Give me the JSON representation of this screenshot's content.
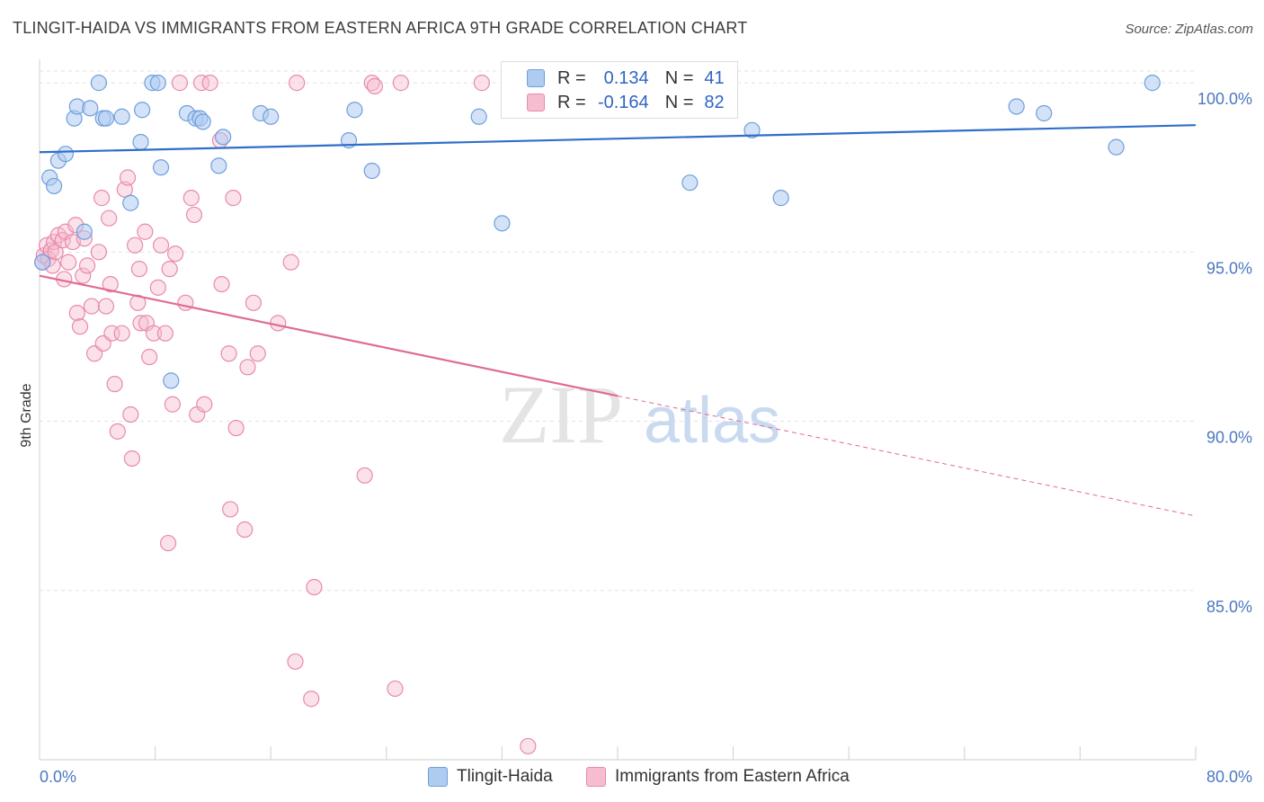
{
  "title": "TLINGIT-HAIDA VS IMMIGRANTS FROM EASTERN AFRICA 9TH GRADE CORRELATION CHART",
  "source": "Source: ZipAtlas.com",
  "watermark_zip": "ZIP",
  "watermark_atlas": "atlas",
  "stats": [
    {
      "r_label": "R =",
      "r_value": "0.134",
      "n_label": "N =",
      "n_value": "41"
    },
    {
      "r_label": "R =",
      "r_value": "-0.164",
      "n_label": "N =",
      "n_value": "82"
    }
  ],
  "legend": [
    "Tlingit-Haida",
    "Immigrants from Eastern Africa"
  ],
  "colors": {
    "blue_fill": "#aecbf0",
    "blue_stroke": "#6e9fdc",
    "blue_line": "#2f6fc9",
    "pink_fill": "#f6bdd0",
    "pink_stroke": "#e88aaa",
    "pink_line": "#e06b94",
    "grid": "#e2e2e2",
    "axis_text": "#4a78c2"
  },
  "chart_data": {
    "type": "scatter",
    "title": "TLINGIT-HAIDA VS IMMIGRANTS FROM EASTERN AFRICA 9TH GRADE CORRELATION CHART",
    "xlabel": "",
    "ylabel": "9th Grade",
    "xlim": [
      0,
      80
    ],
    "ylim": [
      80,
      100.8
    ],
    "x_ticks": [
      "0.0%",
      "80.0%"
    ],
    "y_ticks": [
      {
        "value": 100,
        "label": "100.0%"
      },
      {
        "value": 95,
        "label": "95.0%"
      },
      {
        "value": 90,
        "label": "90.0%"
      },
      {
        "value": 85,
        "label": "85.0%"
      }
    ],
    "grid": true,
    "series": [
      {
        "name": "Tlingit-Haida",
        "trend": {
          "x0": 0,
          "y0": 97.95,
          "x1": 80,
          "y1": 98.75,
          "solid_to": 80
        },
        "points": [
          [
            0.7,
            97.2
          ],
          [
            1.0,
            96.95
          ],
          [
            1.3,
            97.7
          ],
          [
            1.8,
            97.9
          ],
          [
            2.4,
            98.95
          ],
          [
            2.6,
            99.3
          ],
          [
            3.1,
            95.6
          ],
          [
            3.5,
            99.25
          ],
          [
            4.1,
            100.0
          ],
          [
            4.4,
            98.95
          ],
          [
            4.6,
            98.95
          ],
          [
            5.7,
            99.0
          ],
          [
            6.3,
            96.45
          ],
          [
            7.0,
            98.25
          ],
          [
            7.1,
            99.2
          ],
          [
            7.8,
            100.0
          ],
          [
            8.2,
            100.0
          ],
          [
            8.4,
            97.5
          ],
          [
            9.1,
            91.2
          ],
          [
            10.2,
            99.1
          ],
          [
            10.8,
            98.95
          ],
          [
            11.1,
            98.95
          ],
          [
            11.3,
            98.85
          ],
          [
            12.4,
            97.55
          ],
          [
            12.7,
            98.4
          ],
          [
            15.3,
            99.1
          ],
          [
            16.0,
            99.0
          ],
          [
            21.4,
            98.3
          ],
          [
            21.8,
            99.2
          ],
          [
            23.0,
            97.4
          ],
          [
            30.4,
            99.0
          ],
          [
            32.0,
            95.85
          ],
          [
            36.0,
            100.0
          ],
          [
            45.0,
            97.05
          ],
          [
            49.3,
            98.6
          ],
          [
            51.3,
            96.6
          ],
          [
            67.6,
            99.3
          ],
          [
            69.5,
            99.1
          ],
          [
            74.5,
            98.1
          ],
          [
            77.0,
            100.0
          ],
          [
            0.2,
            94.7
          ]
        ]
      },
      {
        "name": "Immigrants from Eastern Africa",
        "trend": {
          "x0": 0,
          "y0": 94.3,
          "x1": 80,
          "y1": 87.2,
          "solid_to": 40
        },
        "points": [
          [
            0.2,
            94.7
          ],
          [
            0.3,
            94.9
          ],
          [
            0.5,
            95.2
          ],
          [
            0.6,
            94.8
          ],
          [
            0.8,
            95.05
          ],
          [
            0.9,
            94.6
          ],
          [
            1.0,
            95.3
          ],
          [
            1.1,
            95.0
          ],
          [
            1.3,
            95.5
          ],
          [
            1.6,
            95.35
          ],
          [
            1.7,
            94.2
          ],
          [
            1.8,
            95.6
          ],
          [
            2.0,
            94.7
          ],
          [
            2.3,
            95.3
          ],
          [
            2.5,
            95.8
          ],
          [
            2.6,
            93.2
          ],
          [
            2.8,
            92.8
          ],
          [
            3.0,
            94.3
          ],
          [
            3.1,
            95.4
          ],
          [
            3.3,
            94.6
          ],
          [
            3.6,
            93.4
          ],
          [
            3.8,
            92.0
          ],
          [
            4.1,
            95.0
          ],
          [
            4.3,
            96.6
          ],
          [
            4.4,
            92.3
          ],
          [
            4.6,
            93.4
          ],
          [
            4.8,
            96.0
          ],
          [
            4.9,
            94.05
          ],
          [
            5.0,
            92.6
          ],
          [
            5.2,
            91.1
          ],
          [
            5.4,
            89.7
          ],
          [
            5.7,
            92.6
          ],
          [
            5.9,
            96.85
          ],
          [
            6.1,
            97.2
          ],
          [
            6.3,
            90.2
          ],
          [
            6.4,
            88.9
          ],
          [
            6.6,
            95.2
          ],
          [
            6.8,
            93.5
          ],
          [
            6.9,
            94.5
          ],
          [
            7.0,
            92.9
          ],
          [
            7.3,
            95.6
          ],
          [
            7.4,
            92.9
          ],
          [
            7.6,
            91.9
          ],
          [
            7.9,
            92.6
          ],
          [
            8.2,
            93.95
          ],
          [
            8.4,
            95.2
          ],
          [
            8.7,
            92.6
          ],
          [
            8.9,
            86.4
          ],
          [
            9.0,
            94.5
          ],
          [
            9.2,
            90.5
          ],
          [
            9.4,
            94.95
          ],
          [
            9.7,
            100.0
          ],
          [
            10.1,
            93.5
          ],
          [
            10.5,
            96.6
          ],
          [
            10.7,
            96.1
          ],
          [
            10.9,
            90.2
          ],
          [
            11.4,
            90.5
          ],
          [
            11.2,
            100.0
          ],
          [
            11.8,
            100.0
          ],
          [
            12.6,
            94.05
          ],
          [
            13.2,
            87.4
          ],
          [
            13.4,
            96.6
          ],
          [
            13.6,
            89.8
          ],
          [
            14.2,
            86.8
          ],
          [
            14.4,
            91.6
          ],
          [
            14.8,
            93.5
          ],
          [
            15.1,
            92.0
          ],
          [
            16.5,
            92.9
          ],
          [
            17.4,
            94.7
          ],
          [
            17.7,
            82.9
          ],
          [
            17.8,
            100.0
          ],
          [
            18.8,
            81.8
          ],
          [
            19.0,
            85.1
          ],
          [
            22.5,
            88.4
          ],
          [
            23.0,
            100.0
          ],
          [
            23.2,
            99.9
          ],
          [
            24.6,
            82.1
          ],
          [
            25.0,
            100.0
          ],
          [
            30.6,
            100.0
          ],
          [
            33.8,
            80.4
          ],
          [
            12.5,
            98.3
          ],
          [
            13.1,
            92.0
          ]
        ]
      }
    ]
  }
}
